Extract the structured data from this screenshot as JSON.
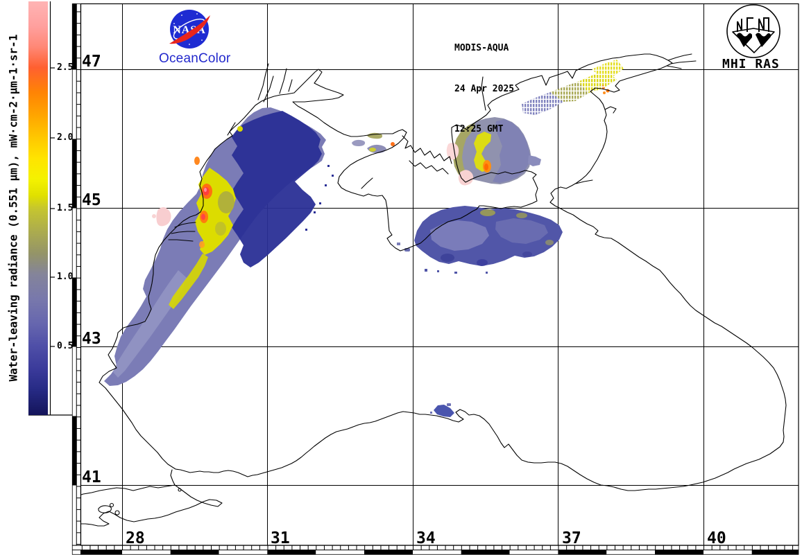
{
  "header": {
    "sensor": "MODIS-AQUA",
    "date": "24 Apr 2025",
    "time": "12:25 GMT"
  },
  "branding": {
    "nasa_text": "NASA",
    "oceancolor_text": "OceanColor",
    "mhi_text": "MHI RAS",
    "nasa_blue": "#1E2BD2",
    "nasa_red": "#E8251C",
    "oceancolor_blue": "#2228CC"
  },
  "colorbar": {
    "title": "Water-leaving radiance (0.551 μm), mW·cm-2·μm-1·sr-1",
    "tick_labels": [
      "2.5",
      "2.0",
      "1.5",
      "1.0",
      "0.5"
    ],
    "value_range_bottom_to_top": [
      0.0,
      3.0
    ],
    "gradient_stops": [
      {
        "pct": 0,
        "color": "#FFB4B4"
      },
      {
        "pct": 6,
        "color": "#FFA09E"
      },
      {
        "pct": 11,
        "color": "#FF8876"
      },
      {
        "pct": 16,
        "color": "#FF6030"
      },
      {
        "pct": 22,
        "color": "#FF8404"
      },
      {
        "pct": 28,
        "color": "#FFA800"
      },
      {
        "pct": 33,
        "color": "#FFC800"
      },
      {
        "pct": 38,
        "color": "#FFE400"
      },
      {
        "pct": 43,
        "color": "#F4F200"
      },
      {
        "pct": 47,
        "color": "#E0E000"
      },
      {
        "pct": 50,
        "color": "#C6C62E"
      },
      {
        "pct": 56,
        "color": "#AAAA50"
      },
      {
        "pct": 61,
        "color": "#949468"
      },
      {
        "pct": 66,
        "color": "#84849A"
      },
      {
        "pct": 72,
        "color": "#7878AC"
      },
      {
        "pct": 78,
        "color": "#6666AE"
      },
      {
        "pct": 83,
        "color": "#5050A8"
      },
      {
        "pct": 89,
        "color": "#3A3A9A"
      },
      {
        "pct": 94,
        "color": "#262A84"
      },
      {
        "pct": 100,
        "color": "#14145A"
      }
    ]
  },
  "map": {
    "region": "Black Sea and Sea of Azov",
    "lat_labels": [
      "47",
      "45",
      "43",
      "41"
    ],
    "lon_labels": [
      "28",
      "31",
      "34",
      "37",
      "40"
    ],
    "data_regions": [
      {
        "name": "NW Black Sea shelf swath (Odessa–Burgas)",
        "radiance": "0.3–1.2 offshore, navy 0.1–0.4"
      },
      {
        "name": "Danube delta coastal plume",
        "radiance": "yellow 1.5–2.0, orange-red cores 2.2–2.8"
      },
      {
        "name": "Sea of Azov bloom",
        "radiance": "0.8–1.6 with yellow swirls ~1.8 and orange core ~2.2"
      },
      {
        "name": "Taganrog Bay dotted swath",
        "radiance": "0.7–2.3 speckled retrievals"
      },
      {
        "name": "Patch south of Kerch Strait",
        "radiance": "0.3–0.9 blue-purple"
      },
      {
        "name": "West Crimea nearshore patches",
        "radiance": "0.6–1.6"
      },
      {
        "name": "Sinop coastal patch",
        "radiance": "0.4–0.7"
      },
      {
        "name": "Pink cloud/no-data patches",
        "radiance": "≈2.9–3.0 (scale top)"
      }
    ]
  }
}
